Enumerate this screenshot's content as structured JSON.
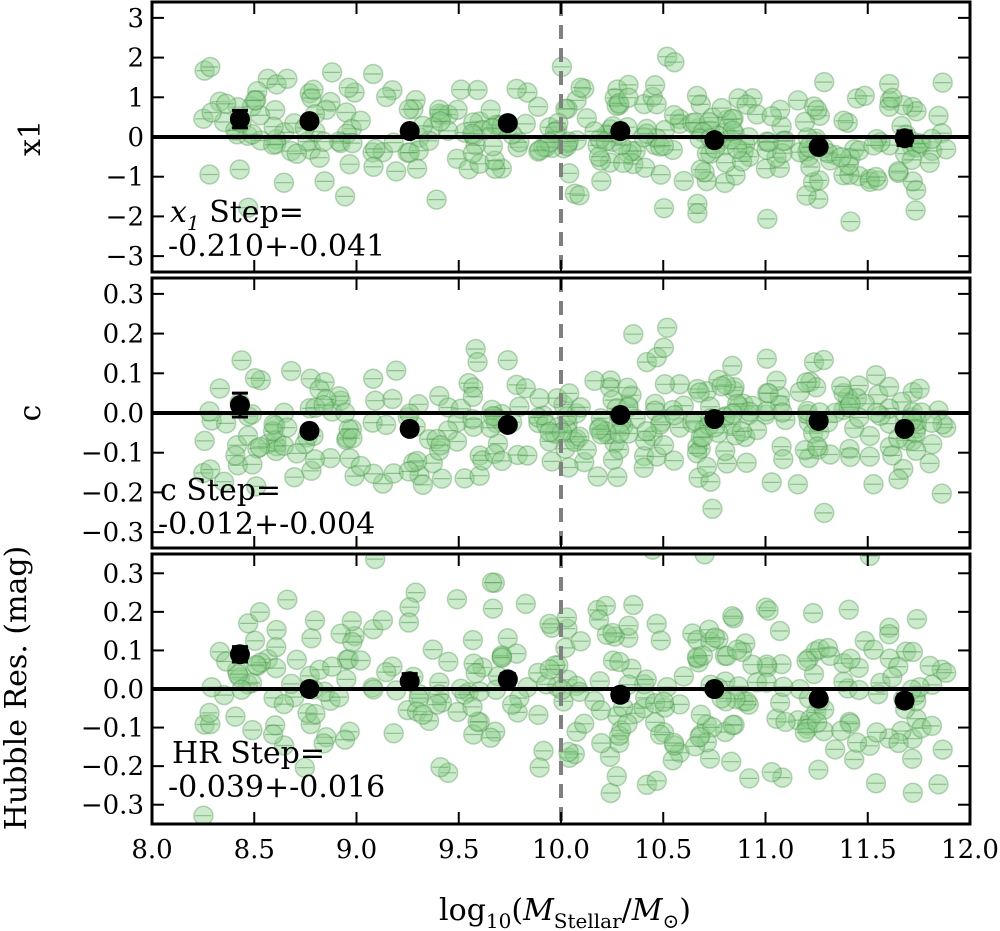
{
  "chart_data": {
    "type": "scatter",
    "x_label": "log10(M_Stellar / M_☉)",
    "x_label_parts": {
      "log": "log",
      "log_sub": "10",
      "open": "(",
      "m1": "M",
      "m1_sub": "Stellar",
      "slash": "/",
      "m2": "M",
      "m2_sub": "⊙",
      "close": ")"
    },
    "xlim": [
      8.0,
      12.0
    ],
    "x_ticks": [
      "8.0",
      "8.5",
      "9.0",
      "9.5",
      "10.0",
      "10.5",
      "11.0",
      "11.5",
      "12.0"
    ],
    "x_tick_values": [
      8.0,
      8.5,
      9.0,
      9.5,
      10.0,
      10.5,
      11.0,
      11.5,
      12.0
    ],
    "split_mass": 10.0,
    "colors": {
      "points_fill": "#8fd18f",
      "points_stroke": "#3c8c3c",
      "binned": "#000000",
      "split_line": "#808080",
      "zero_line": "#000000"
    },
    "panels": [
      {
        "ylabel": "x1",
        "ylim": [
          -3.4,
          3.4
        ],
        "y_ticks": [
          "3",
          "2",
          "1",
          "0",
          "−1",
          "−2",
          "−3"
        ],
        "y_tick_values": [
          3,
          2,
          1,
          0,
          -1,
          -2,
          -3
        ],
        "step_label_main": "Step=",
        "step_label_sym": "x",
        "step_label_sub": "1",
        "step_value": "-0.210+-0.041",
        "binned": {
          "x": [
            8.43,
            8.77,
            9.26,
            9.74,
            10.29,
            10.75,
            11.26,
            11.68
          ],
          "y": [
            0.45,
            0.4,
            0.15,
            0.35,
            0.15,
            -0.08,
            -0.25,
            -0.03
          ],
          "yerr": [
            0.22,
            0.1,
            0.1,
            0.1,
            0.09,
            0.1,
            0.12,
            0.18
          ]
        },
        "scatter_spread": 0.75,
        "scatter_trend": [
          [
            8.0,
            0.35
          ],
          [
            10.0,
            0.3
          ],
          [
            10.6,
            -0.05
          ],
          [
            12.0,
            -0.3
          ]
        ]
      },
      {
        "ylabel": "c",
        "ylim": [
          -0.34,
          0.34
        ],
        "y_ticks": [
          "0.3",
          "0.2",
          "0.1",
          "0.0",
          "−0.1",
          "−0.2",
          "−0.3"
        ],
        "y_tick_values": [
          0.3,
          0.2,
          0.1,
          0.0,
          -0.1,
          -0.2,
          -0.3
        ],
        "step_label_main": "c Step=",
        "step_value": "-0.012+-0.004",
        "binned": {
          "x": [
            8.43,
            8.77,
            9.26,
            9.74,
            10.29,
            10.75,
            11.26,
            11.68
          ],
          "y": [
            0.02,
            -0.045,
            -0.04,
            -0.03,
            -0.005,
            -0.015,
            -0.02,
            -0.04
          ],
          "yerr": [
            0.03,
            0.01,
            0.01,
            0.008,
            0.008,
            0.008,
            0.01,
            0.012
          ]
        },
        "scatter_spread": 0.085,
        "scatter_trend": [
          [
            8.0,
            -0.03
          ],
          [
            12.0,
            -0.02
          ]
        ]
      },
      {
        "ylabel": "Hubble Res. (mag)",
        "ylim": [
          -0.35,
          0.35
        ],
        "y_ticks": [
          "0.3",
          "0.2",
          "0.1",
          "0.0",
          "−0.1",
          "−0.2",
          "−0.3"
        ],
        "y_tick_values": [
          0.3,
          0.2,
          0.1,
          0.0,
          -0.1,
          -0.2,
          -0.3
        ],
        "step_label_main": "HR Step=",
        "step_value": "-0.039+-0.016",
        "binned": {
          "x": [
            8.43,
            8.77,
            9.26,
            9.74,
            10.29,
            10.75,
            11.26,
            11.68
          ],
          "y": [
            0.09,
            0.0,
            0.02,
            0.025,
            -0.015,
            0.0,
            -0.025,
            -0.03
          ],
          "yerr": [
            0.02,
            0.015,
            0.02,
            0.015,
            0.015,
            0.01,
            0.012,
            0.015
          ]
        },
        "scatter_spread": 0.12,
        "scatter_trend": [
          [
            8.0,
            0.02
          ],
          [
            10.0,
            0.02
          ],
          [
            12.0,
            -0.03
          ]
        ]
      }
    ],
    "scatter_count": 320
  }
}
